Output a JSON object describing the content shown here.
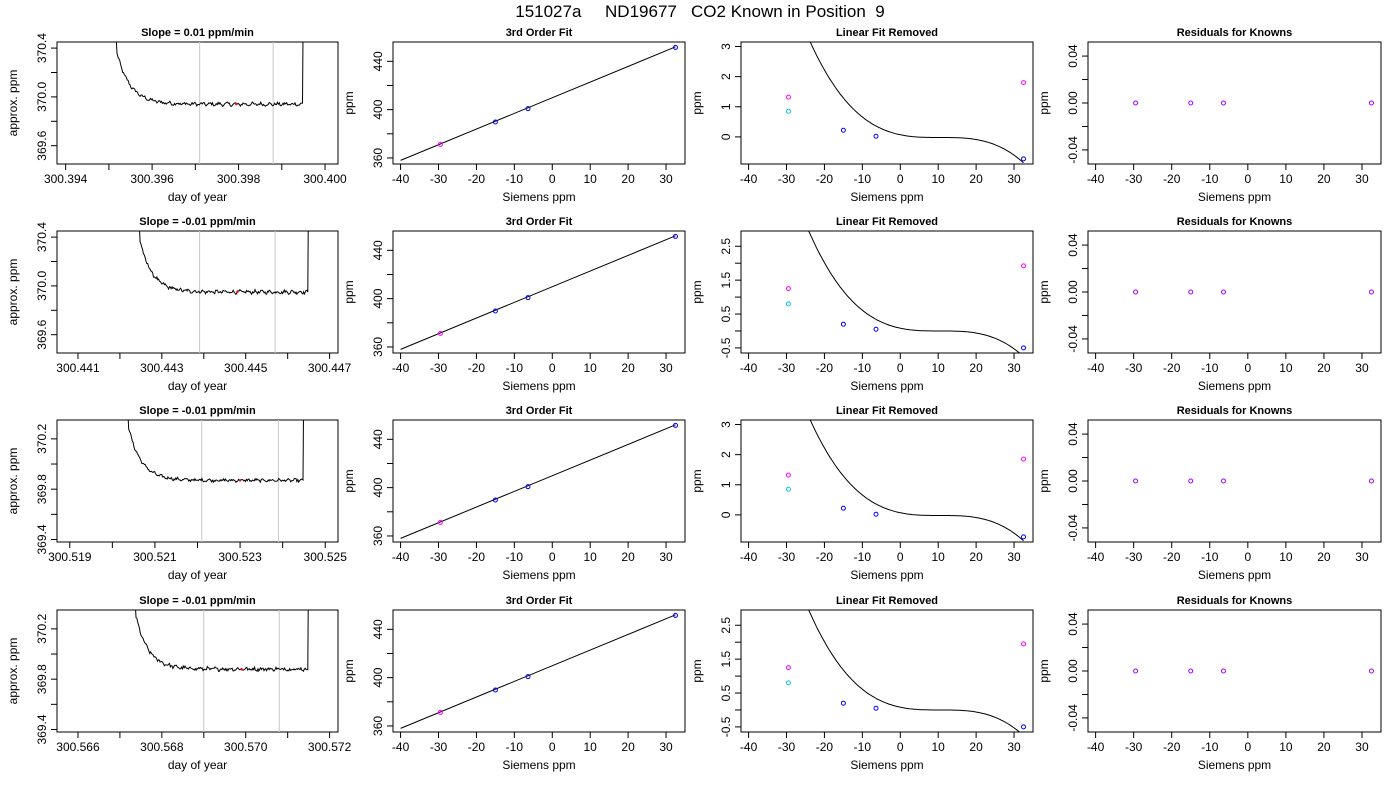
{
  "title": "151027a     ND19677   CO2 Known in Position  9",
  "colors": {
    "line": "#000000",
    "window_lines": "#c8c8c8",
    "point_blue": "#0000ff",
    "point_magenta": "#ff00ff",
    "point_cyan": "#00c8e0",
    "point_purple": "#a000ff",
    "point_red": "#ff0000"
  },
  "chart_data": [
    {
      "type": "line",
      "row": 0,
      "col": 0,
      "title": "Slope =  0.01  ppm/min",
      "xlabel": "day of year",
      "ylabel": "approx. ppm",
      "xlim": [
        300.3938,
        300.4003
      ],
      "ylim": [
        369.45,
        370.45
      ],
      "xticks": [
        300.394,
        300.395,
        300.396,
        300.397,
        300.398,
        300.399,
        300.4
      ],
      "xticklabels": [
        "300.394",
        "",
        "300.396",
        "",
        "300.398",
        "",
        "300.400"
      ],
      "yticks": [
        369.6,
        369.8,
        370.0,
        370.2,
        370.4
      ],
      "yticklabels": [
        "369.6",
        "",
        "370.0",
        "",
        "370.4"
      ],
      "vlines": [
        300.3971,
        300.3988
      ],
      "trace_start": 300.3951,
      "trace_end": 300.3995,
      "plateau": 369.94,
      "noise": 0.012
    },
    {
      "type": "line",
      "row": 0,
      "col": 1,
      "title": "3rd Order Fit",
      "xlabel": "Siemens ppm",
      "ylabel": "ppm",
      "xlim": [
        -42,
        35
      ],
      "ylim": [
        355,
        456
      ],
      "xticks": [
        -40,
        -30,
        -20,
        -10,
        0,
        10,
        20,
        30
      ],
      "xticklabels": [
        "-40",
        "-30",
        "-20",
        "-10",
        "0",
        "10",
        "20",
        "30"
      ],
      "yticks": [
        360,
        380,
        400,
        420,
        440
      ],
      "yticklabels": [
        "360",
        "",
        "400",
        "",
        "440"
      ],
      "curve": {
        "x": [
          -40,
          32.5
        ],
        "y": [
          358,
          452
        ]
      },
      "points": [
        {
          "x": -29.5,
          "y": 371.2,
          "color": "magenta"
        },
        {
          "x": -15,
          "y": 389.8,
          "color": "blue"
        },
        {
          "x": -6.4,
          "y": 400.8,
          "color": "blue"
        },
        {
          "x": 32.5,
          "y": 451.5,
          "color": "blue"
        }
      ]
    },
    {
      "type": "line",
      "row": 0,
      "col": 2,
      "title": "Linear Fit Removed",
      "xlabel": "Siemens ppm",
      "ylabel": "ppm",
      "xlim": [
        -42,
        35
      ],
      "ylim": [
        -0.9,
        3.15
      ],
      "xticks": [
        -40,
        -30,
        -20,
        -10,
        0,
        10,
        20,
        30
      ],
      "xticklabels": [
        "-40",
        "-30",
        "-20",
        "-10",
        "0",
        "10",
        "20",
        "30"
      ],
      "yticks": [
        0,
        1,
        2,
        3
      ],
      "yticklabels": [
        "0",
        "1",
        "2",
        "3"
      ],
      "poly": {
        "x0": 10.5,
        "a": -7.9e-05,
        "c": -0.02,
        "xmin": -38.5,
        "xmax": 32.5
      },
      "points": [
        {
          "x": -29.5,
          "y": 1.32,
          "color": "magenta"
        },
        {
          "x": -29.5,
          "y": 0.85,
          "color": "cyan"
        },
        {
          "x": -15,
          "y": 0.22,
          "color": "blue"
        },
        {
          "x": -6.4,
          "y": 0.02,
          "color": "blue"
        },
        {
          "x": 32.5,
          "y": 1.8,
          "color": "magenta"
        },
        {
          "x": 32.5,
          "y": -0.73,
          "color": "blue"
        }
      ]
    },
    {
      "type": "scatter",
      "row": 0,
      "col": 3,
      "title": "Residuals for Knowns",
      "xlabel": "Siemens ppm",
      "ylabel": "ppm",
      "xlim": [
        -42,
        35
      ],
      "ylim": [
        -0.052,
        0.052
      ],
      "xticks": [
        -40,
        -30,
        -20,
        -10,
        0,
        10,
        20,
        30
      ],
      "xticklabels": [
        "-40",
        "-30",
        "-20",
        "-10",
        "0",
        "10",
        "20",
        "30"
      ],
      "yticks": [
        -0.04,
        -0.02,
        0,
        0.02,
        0.04
      ],
      "yticklabels": [
        "-0.04",
        "",
        "0.00",
        "",
        "0.04"
      ],
      "points": [
        {
          "x": -29.5,
          "y": 0,
          "color": "purple"
        },
        {
          "x": -15,
          "y": 0,
          "color": "purple"
        },
        {
          "x": -6.4,
          "y": 0,
          "color": "purple"
        },
        {
          "x": 32.5,
          "y": 0,
          "color": "purple"
        }
      ]
    },
    {
      "type": "line",
      "row": 1,
      "col": 0,
      "title": "Slope =  -0.01  ppm/min",
      "xlabel": "day of year",
      "ylabel": "approx. ppm",
      "xlim": [
        300.4405,
        300.4472
      ],
      "ylim": [
        369.45,
        370.45
      ],
      "xticks": [
        300.441,
        300.442,
        300.443,
        300.444,
        300.445,
        300.446,
        300.447
      ],
      "xticklabels": [
        "300.441",
        "",
        "300.443",
        "",
        "300.445",
        "",
        "300.447"
      ],
      "yticks": [
        369.6,
        369.8,
        370.0,
        370.2,
        370.4
      ],
      "yticklabels": [
        "369.6",
        "",
        "370.0",
        "",
        "370.4"
      ],
      "vlines": [
        300.4439,
        300.4457
      ],
      "trace_start": 300.4424,
      "trace_end": 300.4465,
      "plateau": 369.95,
      "noise": 0.012
    },
    {
      "type": "line",
      "row": 1,
      "col": 1,
      "title": "3rd Order Fit",
      "xlabel": "Siemens ppm",
      "ylabel": "ppm",
      "xlim": [
        -42,
        35
      ],
      "ylim": [
        355,
        456
      ],
      "xticks": [
        -40,
        -30,
        -20,
        -10,
        0,
        10,
        20,
        30
      ],
      "xticklabels": [
        "-40",
        "-30",
        "-20",
        "-10",
        "0",
        "10",
        "20",
        "30"
      ],
      "yticks": [
        360,
        380,
        400,
        420,
        440
      ],
      "yticklabels": [
        "360",
        "",
        "400",
        "",
        "440"
      ],
      "curve": {
        "x": [
          -40,
          32.5
        ],
        "y": [
          358,
          452
        ]
      },
      "points": [
        {
          "x": -29.5,
          "y": 371.2,
          "color": "magenta"
        },
        {
          "x": -15,
          "y": 389.8,
          "color": "blue"
        },
        {
          "x": -6.4,
          "y": 400.8,
          "color": "blue"
        },
        {
          "x": 32.5,
          "y": 451.5,
          "color": "blue"
        }
      ]
    },
    {
      "type": "line",
      "row": 1,
      "col": 2,
      "title": "Linear Fit Removed",
      "xlabel": "Siemens ppm",
      "ylabel": "ppm",
      "xlim": [
        -42,
        35
      ],
      "ylim": [
        -0.65,
        2.95
      ],
      "xticks": [
        -40,
        -30,
        -20,
        -10,
        0,
        10,
        20,
        30
      ],
      "xticklabels": [
        "-40",
        "-30",
        "-20",
        "-10",
        "0",
        "10",
        "20",
        "30"
      ],
      "yticks": [
        -0.5,
        0,
        0.5,
        1,
        1.5,
        2,
        2.5
      ],
      "yticklabels": [
        "-0.5",
        "",
        "0.5",
        "",
        "1.5",
        "",
        "2.5"
      ],
      "poly": {
        "x0": 10.5,
        "a": -7.1e-05,
        "c": 0.0,
        "xmin": -38.5,
        "xmax": 32.5
      },
      "points": [
        {
          "x": -29.5,
          "y": 1.25,
          "color": "magenta"
        },
        {
          "x": -29.5,
          "y": 0.8,
          "color": "cyan"
        },
        {
          "x": -15,
          "y": 0.2,
          "color": "blue"
        },
        {
          "x": -6.4,
          "y": 0.05,
          "color": "blue"
        },
        {
          "x": 32.5,
          "y": 1.92,
          "color": "magenta"
        },
        {
          "x": 32.5,
          "y": -0.5,
          "color": "blue"
        }
      ]
    },
    {
      "type": "scatter",
      "row": 1,
      "col": 3,
      "title": "Residuals for Knowns",
      "xlabel": "Siemens ppm",
      "ylabel": "ppm",
      "xlim": [
        -42,
        35
      ],
      "ylim": [
        -0.052,
        0.052
      ],
      "xticks": [
        -40,
        -30,
        -20,
        -10,
        0,
        10,
        20,
        30
      ],
      "xticklabels": [
        "-40",
        "-30",
        "-20",
        "-10",
        "0",
        "10",
        "20",
        "30"
      ],
      "yticks": [
        -0.04,
        -0.02,
        0,
        0.02,
        0.04
      ],
      "yticklabels": [
        "-0.04",
        "",
        "0.00",
        "",
        "0.04"
      ],
      "points": [
        {
          "x": -29.5,
          "y": 0,
          "color": "purple"
        },
        {
          "x": -15,
          "y": 0,
          "color": "purple"
        },
        {
          "x": -6.4,
          "y": 0,
          "color": "purple"
        },
        {
          "x": 32.5,
          "y": 0,
          "color": "purple"
        }
      ]
    },
    {
      "type": "line",
      "row": 2,
      "col": 0,
      "title": "Slope =  -0.01  ppm/min",
      "xlabel": "day of year",
      "ylabel": "approx. ppm",
      "xlim": [
        300.5187,
        300.5253
      ],
      "ylim": [
        369.38,
        370.35
      ],
      "xticks": [
        300.519,
        300.52,
        300.521,
        300.522,
        300.523,
        300.524,
        300.525
      ],
      "xticklabels": [
        "300.519",
        "",
        "300.521",
        "",
        "300.523",
        "",
        "300.525"
      ],
      "yticks": [
        369.4,
        369.6,
        369.8,
        370.0,
        370.2
      ],
      "yticklabels": [
        "369.4",
        "",
        "369.8",
        "",
        "370.2"
      ],
      "vlines": [
        300.5221,
        300.5239
      ],
      "trace_start": 300.5203,
      "trace_end": 300.5245,
      "plateau": 369.87,
      "noise": 0.01
    },
    {
      "type": "line",
      "row": 2,
      "col": 1,
      "title": "3rd Order Fit",
      "xlabel": "Siemens ppm",
      "ylabel": "ppm",
      "xlim": [
        -42,
        35
      ],
      "ylim": [
        355,
        456
      ],
      "xticks": [
        -40,
        -30,
        -20,
        -10,
        0,
        10,
        20,
        30
      ],
      "xticklabels": [
        "-40",
        "-30",
        "-20",
        "-10",
        "0",
        "10",
        "20",
        "30"
      ],
      "yticks": [
        360,
        380,
        400,
        420,
        440
      ],
      "yticklabels": [
        "360",
        "",
        "400",
        "",
        "440"
      ],
      "curve": {
        "x": [
          -40,
          32.5
        ],
        "y": [
          358,
          452
        ]
      },
      "points": [
        {
          "x": -29.5,
          "y": 371.2,
          "color": "magenta"
        },
        {
          "x": -15,
          "y": 389.8,
          "color": "blue"
        },
        {
          "x": -6.4,
          "y": 400.8,
          "color": "blue"
        },
        {
          "x": 32.5,
          "y": 451.5,
          "color": "blue"
        }
      ]
    },
    {
      "type": "line",
      "row": 2,
      "col": 2,
      "title": "Linear Fit Removed",
      "xlabel": "Siemens ppm",
      "ylabel": "ppm",
      "xlim": [
        -42,
        35
      ],
      "ylim": [
        -0.9,
        3.15
      ],
      "xticks": [
        -40,
        -30,
        -20,
        -10,
        0,
        10,
        20,
        30
      ],
      "xticklabels": [
        "-40",
        "-30",
        "-20",
        "-10",
        "0",
        "10",
        "20",
        "30"
      ],
      "yticks": [
        0,
        1,
        2,
        3
      ],
      "yticklabels": [
        "0",
        "1",
        "2",
        "3"
      ],
      "poly": {
        "x0": 10.5,
        "a": -7.9e-05,
        "c": -0.02,
        "xmin": -38.5,
        "xmax": 32.5
      },
      "points": [
        {
          "x": -29.5,
          "y": 1.32,
          "color": "magenta"
        },
        {
          "x": -29.5,
          "y": 0.85,
          "color": "cyan"
        },
        {
          "x": -15,
          "y": 0.22,
          "color": "blue"
        },
        {
          "x": -6.4,
          "y": 0.02,
          "color": "blue"
        },
        {
          "x": 32.5,
          "y": 1.85,
          "color": "magenta"
        },
        {
          "x": 32.5,
          "y": -0.73,
          "color": "blue"
        }
      ]
    },
    {
      "type": "scatter",
      "row": 2,
      "col": 3,
      "title": "Residuals for Knowns",
      "xlabel": "Siemens ppm",
      "ylabel": "ppm",
      "xlim": [
        -42,
        35
      ],
      "ylim": [
        -0.052,
        0.052
      ],
      "xticks": [
        -40,
        -30,
        -20,
        -10,
        0,
        10,
        20,
        30
      ],
      "xticklabels": [
        "-40",
        "-30",
        "-20",
        "-10",
        "0",
        "10",
        "20",
        "30"
      ],
      "yticks": [
        -0.04,
        -0.02,
        0,
        0.02,
        0.04
      ],
      "yticklabels": [
        "-0.04",
        "",
        "0.00",
        "",
        "0.04"
      ],
      "points": [
        {
          "x": -29.5,
          "y": 0,
          "color": "purple"
        },
        {
          "x": -15,
          "y": 0,
          "color": "purple"
        },
        {
          "x": -6.4,
          "y": 0,
          "color": "purple"
        },
        {
          "x": 32.5,
          "y": 0,
          "color": "purple"
        }
      ]
    },
    {
      "type": "line",
      "row": 3,
      "col": 0,
      "title": "Slope =  -0.01  ppm/min",
      "xlabel": "day of year",
      "ylabel": "approx. ppm",
      "xlim": [
        300.5655,
        300.5722
      ],
      "ylim": [
        369.38,
        370.35
      ],
      "xticks": [
        300.566,
        300.567,
        300.568,
        300.569,
        300.57,
        300.571,
        300.572
      ],
      "xticklabels": [
        "300.566",
        "",
        "300.568",
        "",
        "300.570",
        "",
        "300.572"
      ],
      "yticks": [
        369.4,
        369.6,
        369.8,
        370.0,
        370.2
      ],
      "yticklabels": [
        "369.4",
        "",
        "369.8",
        "",
        "370.2"
      ],
      "vlines": [
        300.569,
        300.5708
      ],
      "trace_start": 300.5673,
      "trace_end": 300.5715,
      "plateau": 369.88,
      "noise": 0.012
    },
    {
      "type": "line",
      "row": 3,
      "col": 1,
      "title": "3rd Order Fit",
      "xlabel": "Siemens ppm",
      "ylabel": "ppm",
      "xlim": [
        -42,
        35
      ],
      "ylim": [
        355,
        456
      ],
      "xticks": [
        -40,
        -30,
        -20,
        -10,
        0,
        10,
        20,
        30
      ],
      "xticklabels": [
        "-40",
        "-30",
        "-20",
        "-10",
        "0",
        "10",
        "20",
        "30"
      ],
      "yticks": [
        360,
        380,
        400,
        420,
        440
      ],
      "yticklabels": [
        "360",
        "",
        "400",
        "",
        "440"
      ],
      "curve": {
        "x": [
          -40,
          32.5
        ],
        "y": [
          358,
          452
        ]
      },
      "points": [
        {
          "x": -29.5,
          "y": 371.2,
          "color": "magenta"
        },
        {
          "x": -15,
          "y": 389.8,
          "color": "blue"
        },
        {
          "x": -6.4,
          "y": 400.8,
          "color": "blue"
        },
        {
          "x": 32.5,
          "y": 451.5,
          "color": "blue"
        }
      ]
    },
    {
      "type": "line",
      "row": 3,
      "col": 2,
      "title": "Linear Fit Removed",
      "xlabel": "Siemens ppm",
      "ylabel": "ppm",
      "xlim": [
        -42,
        35
      ],
      "ylim": [
        -0.65,
        2.95
      ],
      "xticks": [
        -40,
        -30,
        -20,
        -10,
        0,
        10,
        20,
        30
      ],
      "xticklabels": [
        "-40",
        "-30",
        "-20",
        "-10",
        "0",
        "10",
        "20",
        "30"
      ],
      "yticks": [
        -0.5,
        0,
        0.5,
        1,
        1.5,
        2,
        2.5
      ],
      "yticklabels": [
        "-0.5",
        "",
        "0.5",
        "",
        "1.5",
        "",
        "2.5"
      ],
      "poly": {
        "x0": 10.5,
        "a": -7.1e-05,
        "c": 0.0,
        "xmin": -38.5,
        "xmax": 32.5
      },
      "points": [
        {
          "x": -29.5,
          "y": 1.25,
          "color": "magenta"
        },
        {
          "x": -29.5,
          "y": 0.8,
          "color": "cyan"
        },
        {
          "x": -15,
          "y": 0.2,
          "color": "blue"
        },
        {
          "x": -6.4,
          "y": 0.05,
          "color": "blue"
        },
        {
          "x": 32.5,
          "y": 1.95,
          "color": "magenta"
        },
        {
          "x": 32.5,
          "y": -0.5,
          "color": "blue"
        }
      ]
    },
    {
      "type": "scatter",
      "row": 3,
      "col": 3,
      "title": "Residuals for Knowns",
      "xlabel": "Siemens ppm",
      "ylabel": "ppm",
      "xlim": [
        -42,
        35
      ],
      "ylim": [
        -0.052,
        0.052
      ],
      "xticks": [
        -40,
        -30,
        -20,
        -10,
        0,
        10,
        20,
        30
      ],
      "xticklabels": [
        "-40",
        "-30",
        "-20",
        "-10",
        "0",
        "10",
        "20",
        "30"
      ],
      "yticks": [
        -0.04,
        -0.02,
        0,
        0.02,
        0.04
      ],
      "yticklabels": [
        "-0.04",
        "",
        "0.00",
        "",
        "0.04"
      ],
      "points": [
        {
          "x": -29.5,
          "y": 0,
          "color": "purple"
        },
        {
          "x": -15,
          "y": 0,
          "color": "purple"
        },
        {
          "x": -6.4,
          "y": 0,
          "color": "purple"
        },
        {
          "x": 32.5,
          "y": 0,
          "color": "purple"
        }
      ]
    }
  ]
}
